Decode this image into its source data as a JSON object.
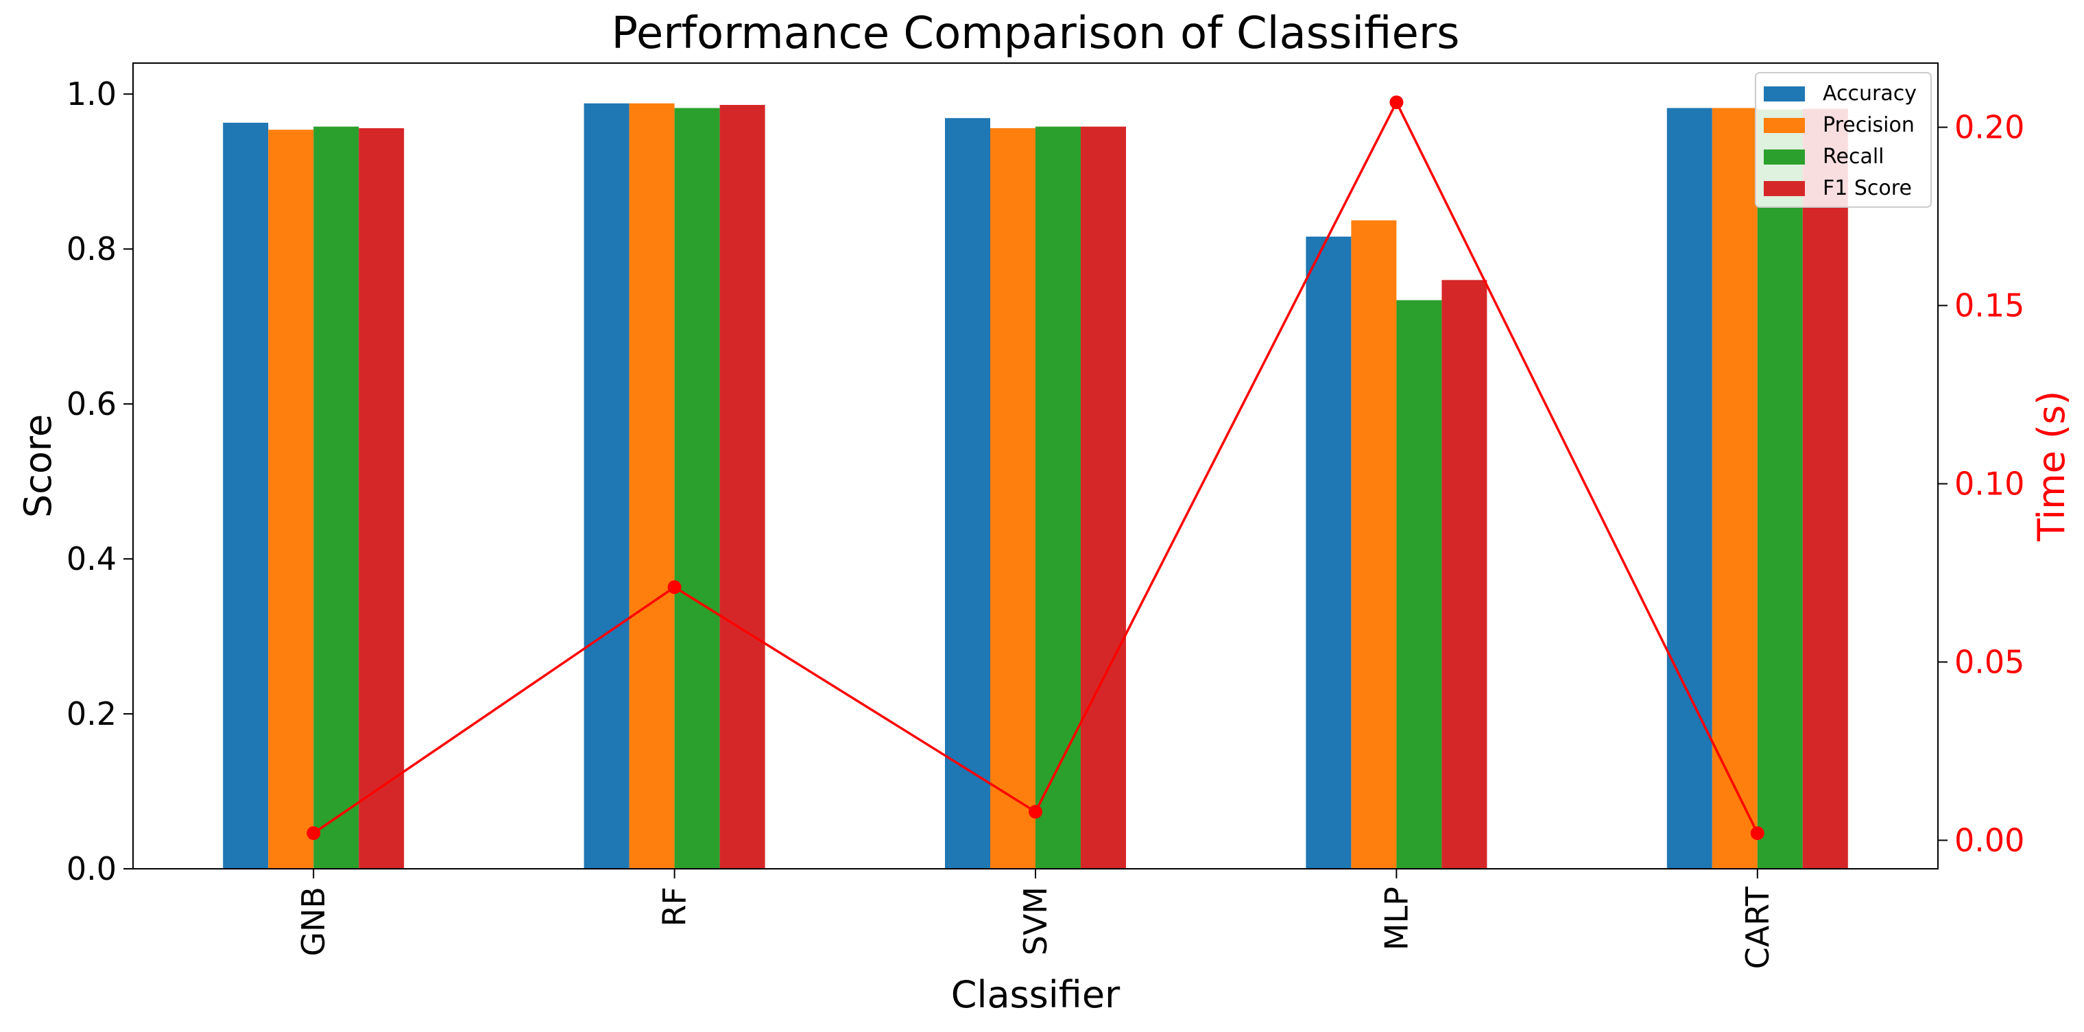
{
  "chart_data": {
    "type": "bar",
    "title": "Performance Comparison of Classifiers",
    "xlabel": "Classifier",
    "ylabel": "Score",
    "y2label": "Time (s)",
    "categories": [
      "GNB",
      "RF",
      "SVM",
      "MLP",
      "CART"
    ],
    "ylim": [
      0,
      1.04
    ],
    "yticks": [
      0.0,
      0.2,
      0.4,
      0.6,
      0.8,
      1.0
    ],
    "ytick_labels": [
      "0.0",
      "0.2",
      "0.4",
      "0.6",
      "0.8",
      "1.0"
    ],
    "y2lim": [
      -0.008,
      0.218
    ],
    "y2ticks": [
      0.0,
      0.05,
      0.1,
      0.15,
      0.2
    ],
    "y2tick_labels": [
      "0.00",
      "0.05",
      "0.10",
      "0.15",
      "0.20"
    ],
    "series": [
      {
        "name": "Accuracy",
        "color": "#1f77b4",
        "values": [
          0.963,
          0.988,
          0.969,
          0.816,
          0.982
        ]
      },
      {
        "name": "Precision",
        "color": "#ff7f0e",
        "values": [
          0.954,
          0.988,
          0.956,
          0.837,
          0.982
        ]
      },
      {
        "name": "Recall",
        "color": "#2ca02c",
        "values": [
          0.958,
          0.982,
          0.958,
          0.734,
          0.98
        ]
      },
      {
        "name": "F1 Score",
        "color": "#d62728",
        "values": [
          0.956,
          0.986,
          0.958,
          0.76,
          0.981
        ]
      }
    ],
    "line_series": {
      "color": "#ff0000",
      "values": [
        0.002,
        0.071,
        0.008,
        0.207,
        0.002
      ]
    },
    "legend_position": "top-right",
    "grid": false
  }
}
